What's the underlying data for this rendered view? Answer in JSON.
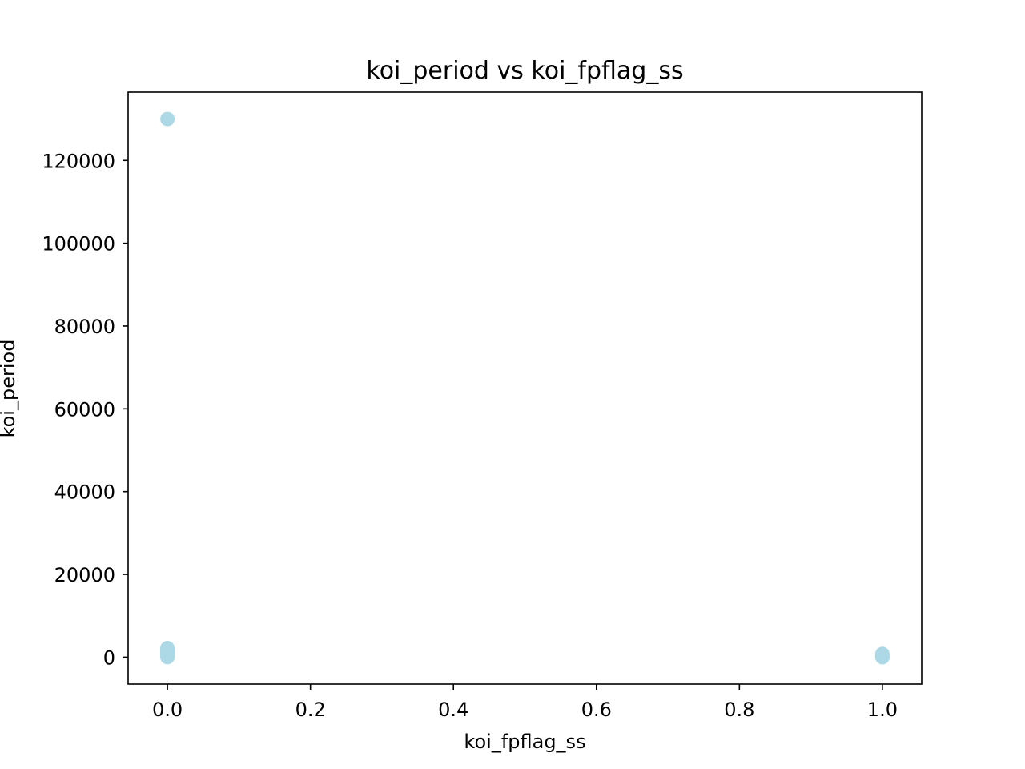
{
  "chart_data": {
    "type": "scatter",
    "title": "koi_period vs koi_fpflag_ss",
    "xlabel": "koi_fpflag_ss",
    "ylabel": "koi_period",
    "xlim": [
      -0.055,
      1.055
    ],
    "ylim": [
      -6500,
      136500
    ],
    "grid": false,
    "legend": "none",
    "point_color": "#add8e6",
    "xticks": [
      0.0,
      0.2,
      0.4,
      0.6,
      0.8,
      1.0
    ],
    "xtick_labels": [
      "0.0",
      "0.2",
      "0.4",
      "0.6",
      "0.8",
      "1.0"
    ],
    "yticks": [
      0,
      20000,
      40000,
      60000,
      80000,
      100000,
      120000
    ],
    "ytick_labels": [
      "0",
      "20000",
      "40000",
      "60000",
      "80000",
      "100000",
      "120000"
    ],
    "series": [
      {
        "x": [
          0,
          0,
          0,
          0,
          0,
          0,
          0,
          0,
          0,
          0,
          0,
          0,
          0,
          0,
          1,
          1,
          1,
          1,
          1,
          1,
          1,
          1,
          1
        ],
        "y": [
          129996,
          2200,
          1900,
          1600,
          1300,
          1100,
          900,
          750,
          600,
          450,
          300,
          200,
          100,
          10,
          800,
          650,
          500,
          380,
          260,
          160,
          90,
          40,
          5
        ]
      }
    ]
  }
}
